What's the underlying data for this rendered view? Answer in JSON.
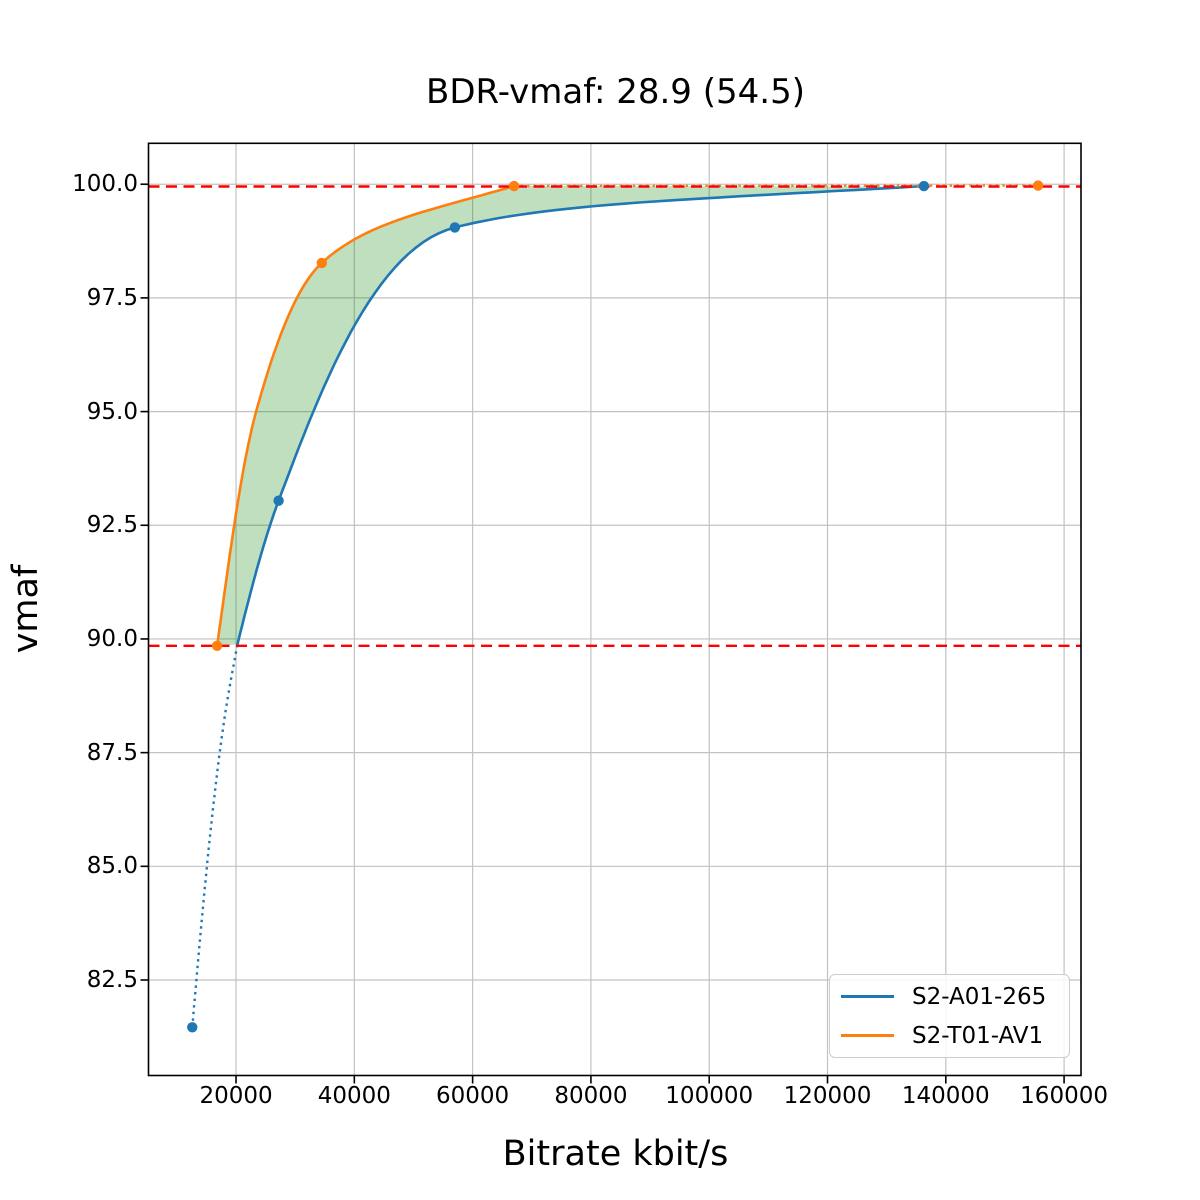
{
  "chart_data": {
    "type": "line",
    "title": "BDR-vmaf: 28.9 (54.5)",
    "xlabel": "Bitrate kbit/s",
    "ylabel": "vmaf",
    "xlim": [
      5200,
      162860
    ],
    "ylim": [
      80.4,
      100.9
    ],
    "grid": true,
    "grid_color": "#c2c2c2",
    "x_ticks": [
      20000,
      40000,
      60000,
      80000,
      100000,
      120000,
      140000,
      160000
    ],
    "x_tick_labels": [
      "20000",
      "40000",
      "60000",
      "80000",
      "100000",
      "120000",
      "140000",
      "160000"
    ],
    "y_ticks": [
      82.5,
      85.0,
      87.5,
      90.0,
      92.5,
      95.0,
      97.5,
      100.0
    ],
    "y_tick_labels": [
      "82.5",
      "85.0",
      "87.5",
      "90.0",
      "92.5",
      "95.0",
      "97.5",
      "100.0"
    ],
    "series": [
      {
        "name": "S2-A01-265",
        "color": "#1f77b4",
        "points": [
          [
            12600,
            81.46
          ],
          [
            27200,
            93.04
          ],
          [
            57000,
            99.05
          ],
          [
            136300,
            99.96
          ]
        ],
        "solid_curve": [
          [
            20240,
            89.88
          ],
          [
            27200,
            93.04
          ],
          [
            57000,
            99.05
          ],
          [
            136300,
            99.96
          ]
        ],
        "dotted_curve": [
          [
            12600,
            81.46
          ],
          [
            17950,
            88.17
          ],
          [
            20240,
            89.88
          ]
        ]
      },
      {
        "name": "S2-T01-AV1",
        "color": "#ff7f0e",
        "points": [
          [
            16800,
            89.85
          ],
          [
            34500,
            98.27
          ],
          [
            67000,
            99.96
          ],
          [
            155600,
            99.97
          ]
        ],
        "solid_curve": [
          [
            16800,
            89.85
          ],
          [
            23400,
            95.0
          ],
          [
            34500,
            98.27
          ],
          [
            67000,
            99.96
          ]
        ],
        "dotted_curve": [
          [
            67000,
            99.96
          ],
          [
            155600,
            99.97
          ]
        ]
      }
    ],
    "hlines": [
      {
        "y": 99.95,
        "color": "#ff0000",
        "style": "dashed"
      },
      {
        "y": 89.85,
        "color": "#ff0000",
        "style": "dashed"
      }
    ],
    "shaded_area": {
      "color": "#008000",
      "opacity": 0.25,
      "x_range": [
        16800,
        136300
      ],
      "y_range": [
        89.85,
        99.95
      ]
    },
    "legend": {
      "position": "lower right",
      "entries": [
        "S2-A01-265",
        "S2-T01-AV1"
      ]
    }
  }
}
